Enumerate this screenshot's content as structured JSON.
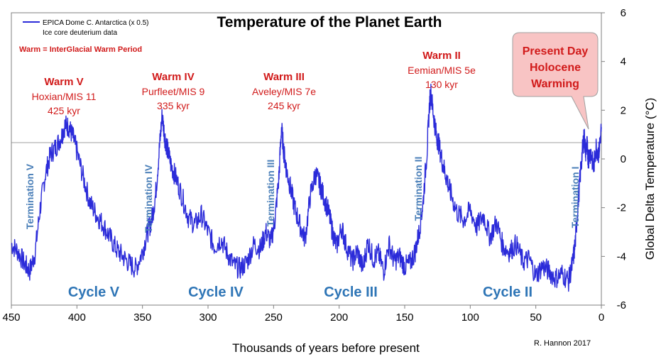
{
  "chart_data": {
    "type": "line",
    "title": "Temperature of the Planet Earth",
    "xlabel": "Thousands of years before present",
    "ylabel": "Global Delta Temperature (°C)",
    "xlim": [
      450,
      0
    ],
    "ylim": [
      -6,
      6
    ],
    "x_ticks": [
      450,
      400,
      350,
      300,
      250,
      200,
      150,
      100,
      50,
      0
    ],
    "y_ticks": [
      6,
      4,
      2,
      0,
      -2,
      -4,
      -6
    ],
    "legend": {
      "series_name": "EPICA Dome C. Antarctica  (x 0.5)",
      "subtitle": "Ice core deuterium data",
      "placement": "top-left"
    },
    "note": "Warm = InterGlacial Warm Period",
    "credit": "R. Hannon 2017",
    "series": [
      {
        "name": "EPICA Dome C. Antarctica  (x 0.5)",
        "color": "#2b2bd9",
        "x": [
          450,
          445,
          440,
          436,
          432,
          428,
          424,
          420,
          416,
          412,
          409,
          406,
          403,
          400,
          395,
          390,
          385,
          380,
          375,
          370,
          365,
          360,
          355,
          350,
          346,
          343,
          340,
          337,
          335,
          333,
          331,
          328,
          325,
          320,
          315,
          310,
          305,
          300,
          295,
          290,
          285,
          280,
          275,
          270,
          265,
          260,
          256,
          252,
          249,
          246,
          244,
          242,
          240,
          237,
          234,
          230,
          226,
          222,
          218,
          215,
          212,
          208,
          205,
          202,
          198,
          195,
          190,
          186,
          182,
          178,
          174,
          170,
          166,
          162,
          158,
          154,
          150,
          146,
          142,
          139,
          136,
          133,
          131,
          130,
          128,
          126,
          124,
          121,
          118,
          115,
          110,
          105,
          100,
          95,
          90,
          85,
          80,
          75,
          70,
          65,
          60,
          55,
          50,
          45,
          40,
          35,
          30,
          25,
          22,
          20,
          18,
          16,
          14,
          13,
          12,
          11,
          10,
          8,
          6,
          4,
          2,
          0
        ],
        "y": [
          -3.5,
          -3.8,
          -4.3,
          -4.6,
          -3.9,
          -2.0,
          -0.6,
          0.2,
          0.5,
          0.9,
          1.4,
          1.3,
          0.9,
          0.3,
          -0.8,
          -1.8,
          -2.3,
          -2.7,
          -3.2,
          -3.7,
          -4.0,
          -4.3,
          -4.5,
          -3.8,
          -3.0,
          -2.5,
          -1.5,
          0.5,
          1.8,
          0.9,
          0.4,
          -0.3,
          -0.7,
          -1.5,
          -2.4,
          -2.7,
          -2.3,
          -3.0,
          -3.6,
          -3.3,
          -3.9,
          -4.4,
          -4.5,
          -4.2,
          -3.5,
          -3.7,
          -3.0,
          -3.4,
          -2.5,
          -0.8,
          1.3,
          0.2,
          -0.5,
          -1.2,
          -2.0,
          -2.7,
          -3.3,
          -1.5,
          -0.6,
          -1.0,
          -1.5,
          -2.2,
          -3.0,
          -3.6,
          -2.8,
          -3.5,
          -4.2,
          -3.8,
          -4.5,
          -3.4,
          -4.1,
          -3.9,
          -4.6,
          -3.5,
          -4.2,
          -4.0,
          -4.4,
          -4.3,
          -3.8,
          -3.0,
          -1.8,
          0.3,
          2.3,
          2.7,
          1.8,
          1.0,
          0.6,
          -0.2,
          -0.8,
          -1.4,
          -2.2,
          -2.5,
          -2.1,
          -2.8,
          -2.3,
          -3.2,
          -2.6,
          -3.6,
          -3.8,
          -3.5,
          -4.2,
          -4.1,
          -4.8,
          -4.4,
          -4.6,
          -4.9,
          -4.7,
          -5.0,
          -4.3,
          -3.5,
          -2.0,
          -0.6,
          0.6,
          0.9,
          0.3,
          0.6,
          0.0,
          0.3,
          -0.4,
          0.5,
          0.2,
          1.3
        ]
      }
    ],
    "annotations": {
      "warm": [
        {
          "title": "Warm V",
          "sub1": "Hoxian/MIS 11",
          "sub2": "425 kyr"
        },
        {
          "title": "Warm IV",
          "sub1": "Purfleet/MIS  9",
          "sub2": "335 kyr"
        },
        {
          "title": "Warm III",
          "sub1": "Aveley/MIS 7e",
          "sub2": "245 kyr"
        },
        {
          "title": "Warm II",
          "sub1": "Eemian/MIS 5e",
          "sub2": "130 kyr"
        }
      ],
      "cycles": [
        "Cycle V",
        "Cycle IV",
        "Cycle III",
        "Cycle II"
      ],
      "terminations": [
        "Termination V",
        "Termination IV",
        "Termination III",
        "Termination II",
        "Termination I"
      ],
      "callout": [
        "Present Day",
        "Holocene",
        "Warming"
      ]
    }
  }
}
